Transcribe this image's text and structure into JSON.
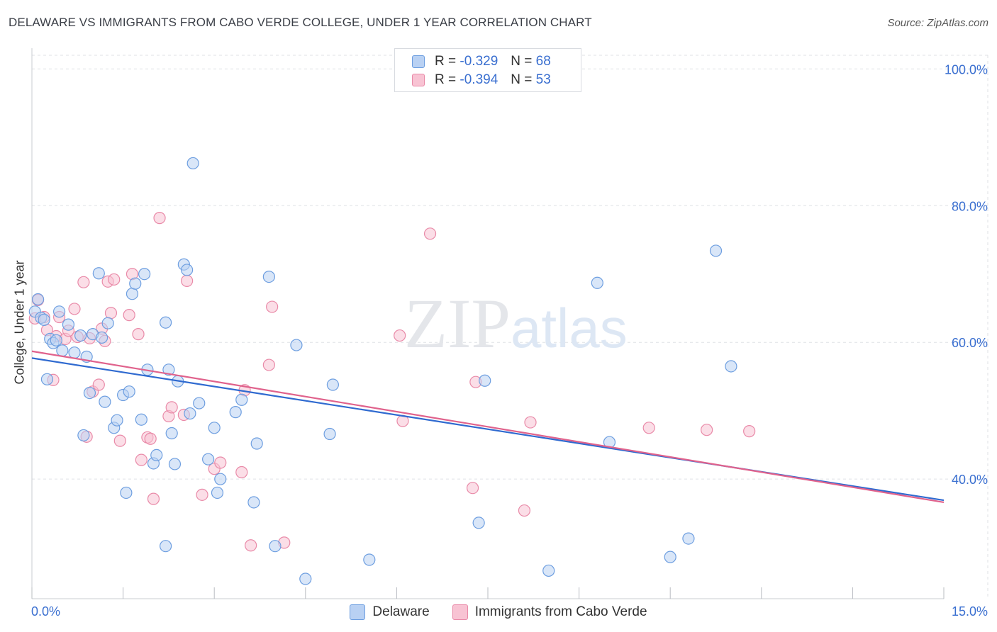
{
  "header": {
    "title": "DELAWARE VS IMMIGRANTS FROM CABO VERDE COLLEGE, UNDER 1 YEAR CORRELATION CHART",
    "source": "Source: ZipAtlas.com"
  },
  "legend": {
    "r_label": "R =",
    "n_label": "N =",
    "rows": [
      {
        "r": "-0.329",
        "n": "68"
      },
      {
        "r": "-0.394",
        "n": "53"
      }
    ]
  },
  "watermark": {
    "zip": "ZIP",
    "atlas": "atlas"
  },
  "colors": {
    "delaware_fill": "#b9d1f3",
    "delaware_stroke": "#6d9ee0",
    "delaware_line": "#2f6ad0",
    "cabo_fill": "#f8c3d3",
    "cabo_stroke": "#e98aa8",
    "cabo_line": "#e0628c",
    "tick_label": "#3a6fd0",
    "grid": "#dfe2e6"
  },
  "chart_data": {
    "type": "scatter",
    "title": "DELAWARE VS IMMIGRANTS FROM CABO VERDE COLLEGE, UNDER 1 YEAR CORRELATION CHART",
    "xlabel": "",
    "ylabel": "College, Under 1 year",
    "xlim": [
      0,
      15
    ],
    "ylim": [
      22.5,
      102
    ],
    "x_tick_labels": [
      "0.0%",
      "15.0%"
    ],
    "y_ticks": [
      40,
      60,
      80,
      100
    ],
    "y_tick_labels": [
      "40.0%",
      "60.0%",
      "80.0%",
      "100.0%"
    ],
    "grid": true,
    "legend_position": "top-center",
    "series": [
      {
        "name": "Delaware",
        "r": -0.329,
        "n": 68,
        "trend": {
          "x": [
            0,
            15
          ],
          "y": [
            57.7,
            36.9
          ]
        },
        "points": [
          [
            0.05,
            64.5
          ],
          [
            0.1,
            66.3
          ],
          [
            0.15,
            63.6
          ],
          [
            0.2,
            63.3
          ],
          [
            0.25,
            54.6
          ],
          [
            0.3,
            60.5
          ],
          [
            0.35,
            59.9
          ],
          [
            0.4,
            60.3
          ],
          [
            0.45,
            64.5
          ],
          [
            0.5,
            58.8
          ],
          [
            0.6,
            62.6
          ],
          [
            0.7,
            58.5
          ],
          [
            0.8,
            61.0
          ],
          [
            0.85,
            46.4
          ],
          [
            0.9,
            57.9
          ],
          [
            0.95,
            52.6
          ],
          [
            1.0,
            61.2
          ],
          [
            1.1,
            70.1
          ],
          [
            1.15,
            60.7
          ],
          [
            1.2,
            51.3
          ],
          [
            1.25,
            62.8
          ],
          [
            1.35,
            47.5
          ],
          [
            1.4,
            48.6
          ],
          [
            1.5,
            52.3
          ],
          [
            1.6,
            52.8
          ],
          [
            1.55,
            38.0
          ],
          [
            1.65,
            67.1
          ],
          [
            1.7,
            68.6
          ],
          [
            1.8,
            48.7
          ],
          [
            1.85,
            70.0
          ],
          [
            1.9,
            56.0
          ],
          [
            2.0,
            42.3
          ],
          [
            2.05,
            43.5
          ],
          [
            2.2,
            62.9
          ],
          [
            2.25,
            56.0
          ],
          [
            2.3,
            46.7
          ],
          [
            2.35,
            42.2
          ],
          [
            2.4,
            54.3
          ],
          [
            2.5,
            71.4
          ],
          [
            2.55,
            70.6
          ],
          [
            2.6,
            49.6
          ],
          [
            2.65,
            86.2
          ],
          [
            2.75,
            51.1
          ],
          [
            2.9,
            42.9
          ],
          [
            3.0,
            47.5
          ],
          [
            3.05,
            38.0
          ],
          [
            3.1,
            40.0
          ],
          [
            3.35,
            49.8
          ],
          [
            3.45,
            51.6
          ],
          [
            3.7,
            45.2
          ],
          [
            3.65,
            36.6
          ],
          [
            3.9,
            69.6
          ],
          [
            4.0,
            30.2
          ],
          [
            4.35,
            59.6
          ],
          [
            4.5,
            25.4
          ],
          [
            4.9,
            46.6
          ],
          [
            4.95,
            53.8
          ],
          [
            5.55,
            28.2
          ],
          [
            7.35,
            33.6
          ],
          [
            7.45,
            54.4
          ],
          [
            8.5,
            26.6
          ],
          [
            9.3,
            68.7
          ],
          [
            9.5,
            45.4
          ],
          [
            10.5,
            28.6
          ],
          [
            10.8,
            31.3
          ],
          [
            11.25,
            73.4
          ],
          [
            11.5,
            56.5
          ],
          [
            2.2,
            30.2
          ]
        ]
      },
      {
        "name": "Immigrants from Cabo Verde",
        "r": -0.394,
        "n": 53,
        "trend": {
          "x": [
            0,
            15
          ],
          "y": [
            58.7,
            36.6
          ]
        },
        "points": [
          [
            0.05,
            63.5
          ],
          [
            0.1,
            66.2
          ],
          [
            0.2,
            63.7
          ],
          [
            0.25,
            61.8
          ],
          [
            0.35,
            54.5
          ],
          [
            0.4,
            60.9
          ],
          [
            0.45,
            63.7
          ],
          [
            0.55,
            60.5
          ],
          [
            0.6,
            61.7
          ],
          [
            0.7,
            64.9
          ],
          [
            0.75,
            60.8
          ],
          [
            0.85,
            68.8
          ],
          [
            0.9,
            46.2
          ],
          [
            0.95,
            60.6
          ],
          [
            1.0,
            52.8
          ],
          [
            1.1,
            53.8
          ],
          [
            1.15,
            62.0
          ],
          [
            1.2,
            60.2
          ],
          [
            1.25,
            68.9
          ],
          [
            1.35,
            69.2
          ],
          [
            1.3,
            64.3
          ],
          [
            1.45,
            45.6
          ],
          [
            1.65,
            70.0
          ],
          [
            1.75,
            61.2
          ],
          [
            1.8,
            42.8
          ],
          [
            1.9,
            46.1
          ],
          [
            1.95,
            45.9
          ],
          [
            2.0,
            37.1
          ],
          [
            2.1,
            78.2
          ],
          [
            2.25,
            49.2
          ],
          [
            2.3,
            50.5
          ],
          [
            2.5,
            49.4
          ],
          [
            2.8,
            37.7
          ],
          [
            3.0,
            41.5
          ],
          [
            3.1,
            42.4
          ],
          [
            3.5,
            53.0
          ],
          [
            3.45,
            41.0
          ],
          [
            3.6,
            30.3
          ],
          [
            3.9,
            56.7
          ],
          [
            3.95,
            65.2
          ],
          [
            4.15,
            30.7
          ],
          [
            6.05,
            61.0
          ],
          [
            6.1,
            48.5
          ],
          [
            6.55,
            75.9
          ],
          [
            7.25,
            38.7
          ],
          [
            7.3,
            54.2
          ],
          [
            8.1,
            35.4
          ],
          [
            8.2,
            48.3
          ],
          [
            10.15,
            47.5
          ],
          [
            11.1,
            47.2
          ],
          [
            11.8,
            47.0
          ],
          [
            2.55,
            69.0
          ],
          [
            1.6,
            64.0
          ]
        ]
      }
    ]
  },
  "bottom_legend": {
    "items": [
      "Delaware",
      "Immigrants from Cabo Verde"
    ]
  }
}
